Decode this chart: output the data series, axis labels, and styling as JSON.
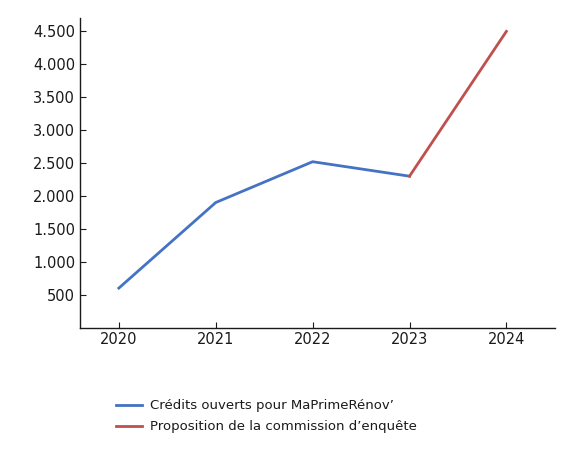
{
  "blue_line": {
    "x": [
      2020,
      2021,
      2022,
      2023
    ],
    "y": [
      600,
      1900,
      2520,
      2300
    ],
    "color": "#4472C4",
    "label": "Crédits ouverts pour MaPrimeRénov’"
  },
  "red_line": {
    "x": [
      2023,
      2024
    ],
    "y": [
      2300,
      4500
    ],
    "color": "#C0504D",
    "label": "Proposition de la commission d’enquête"
  },
  "ylim": [
    0,
    4700
  ],
  "yticks": [
    500,
    1000,
    1500,
    2000,
    2500,
    3000,
    3500,
    4000,
    4500
  ],
  "ytick_labels": [
    "500",
    "1.000",
    "1.500",
    "2.000",
    "2.500",
    "3.000",
    "3.500",
    "4.000",
    "4.500"
  ],
  "xlim": [
    2019.6,
    2024.5
  ],
  "xticks": [
    2020,
    2021,
    2022,
    2023,
    2024
  ],
  "line_width": 2.0,
  "background_color": "#ffffff",
  "font_color": "#1a1a1a",
  "legend_fontsize": 9.5,
  "tick_fontsize": 10.5
}
